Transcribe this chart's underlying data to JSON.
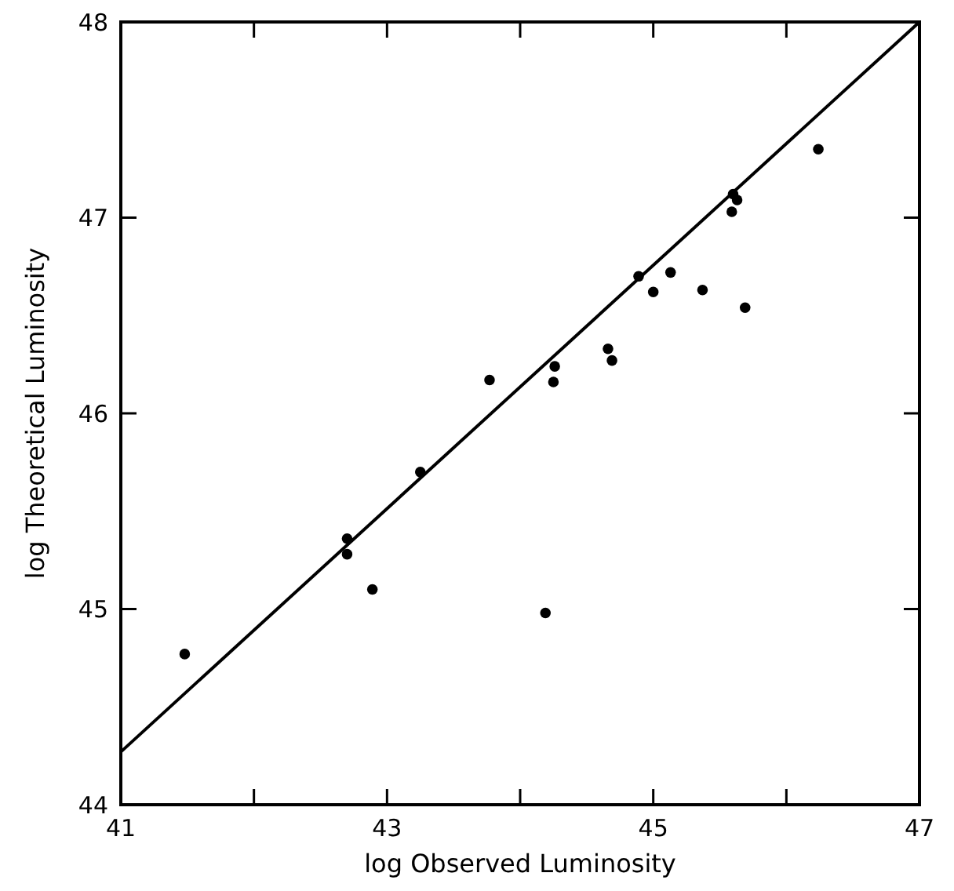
{
  "chart_data": {
    "type": "scatter",
    "xlabel": "log Observed Luminosity",
    "ylabel": "log Theoretical Luminosity",
    "xlim": [
      41,
      47
    ],
    "ylim": [
      44,
      48
    ],
    "xticks": [
      41,
      {
        "value": 42,
        "label": null
      },
      43,
      {
        "value": 44,
        "label": null
      },
      45,
      {
        "value": 46,
        "label": null
      },
      47
    ],
    "yticks": [
      44,
      45,
      46,
      47,
      48
    ],
    "grid": false,
    "series": [
      {
        "marker": "circle",
        "color": "#000000",
        "x": [
          41.48,
          42.7,
          42.7,
          42.89,
          44.19,
          43.25,
          43.77,
          44.26,
          44.25,
          44.66,
          44.69,
          44.89,
          45.0,
          45.13,
          45.37,
          45.69,
          45.6,
          45.63,
          45.59,
          46.24
        ],
        "values": [
          44.77,
          45.36,
          45.28,
          45.1,
          44.98,
          45.7,
          46.17,
          46.24,
          46.16,
          46.33,
          46.27,
          46.7,
          46.62,
          46.72,
          46.63,
          46.54,
          47.12,
          47.09,
          47.03,
          47.35
        ]
      },
      {
        "type": "line",
        "color": "#000000",
        "x": [
          41,
          47
        ],
        "values": [
          44.27,
          48
        ]
      }
    ]
  }
}
